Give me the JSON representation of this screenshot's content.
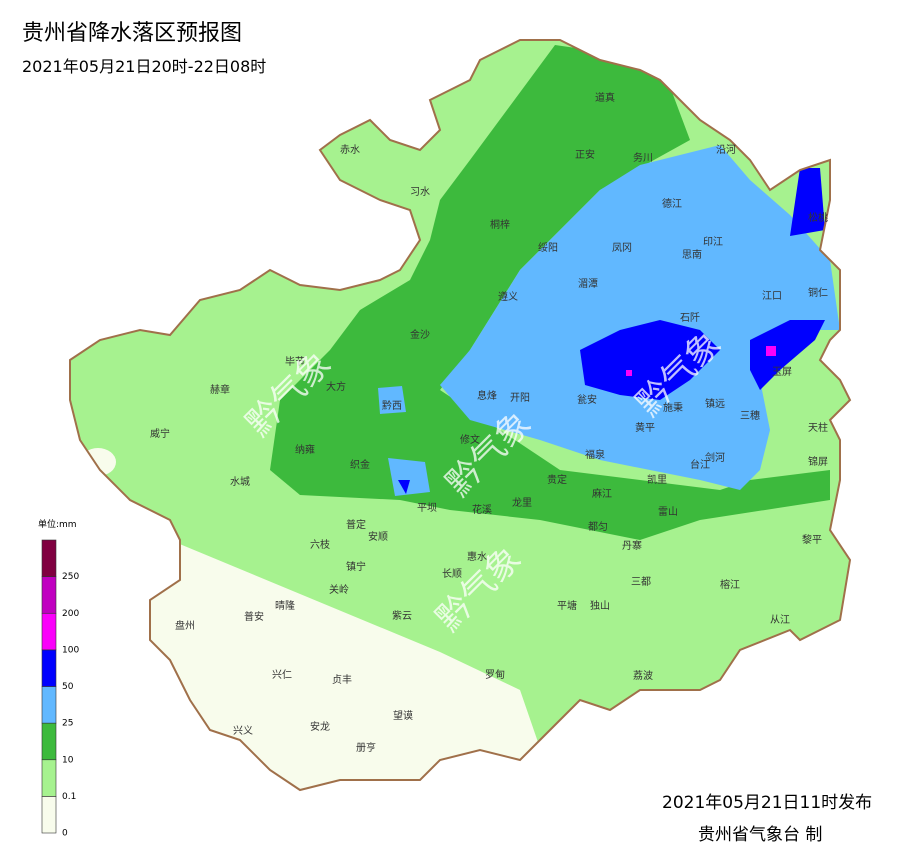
{
  "title": "贵州省降水落区预报图",
  "subtitle": "2021年05月21日20时-22日08时",
  "legend": {
    "unit": "单位:mm",
    "ticks": [
      0,
      0.1,
      10,
      25,
      50,
      100,
      200,
      250
    ],
    "colors": [
      "#f8fcec",
      "#a6f28f",
      "#3dba3d",
      "#61b8ff",
      "#0000fe",
      "#fa00fa",
      "#c000c0",
      "#800040"
    ]
  },
  "cities": [
    "赤水",
    "习水",
    "道真",
    "正安",
    "务川",
    "沿河",
    "桐梓",
    "绥阳",
    "凤冈",
    "德江",
    "印江",
    "思南",
    "松桃",
    "遵义",
    "湄潭",
    "石阡",
    "江口",
    "铜仁",
    "毕节",
    "大方",
    "金沙",
    "黔西",
    "息烽",
    "开阳",
    "瓮安",
    "施秉",
    "镇远",
    "玉屏",
    "赫章",
    "威宁",
    "纳雍",
    "织金",
    "修文",
    "黄平",
    "三穗",
    "天柱",
    "锦屏",
    "剑河",
    "台江",
    "凯里",
    "福泉",
    "贵定",
    "龙里",
    "麻江",
    "雷山",
    "都匀",
    "丹寨",
    "黎平",
    "水城",
    "六枝",
    "普定",
    "安顺",
    "平坝",
    "花溪",
    "惠水",
    "长顺",
    "镇宁",
    "关岭",
    "紫云",
    "平塘",
    "独山",
    "三都",
    "榕江",
    "从江",
    "荔波",
    "罗甸",
    "盘州",
    "普安",
    "晴隆",
    "兴仁",
    "贞丰",
    "望谟",
    "兴义",
    "安龙",
    "册亨"
  ],
  "watermark": "黔气象",
  "footer": {
    "issued": "2021年05月21日11时发布",
    "agency": "贵州省气象台  制"
  }
}
